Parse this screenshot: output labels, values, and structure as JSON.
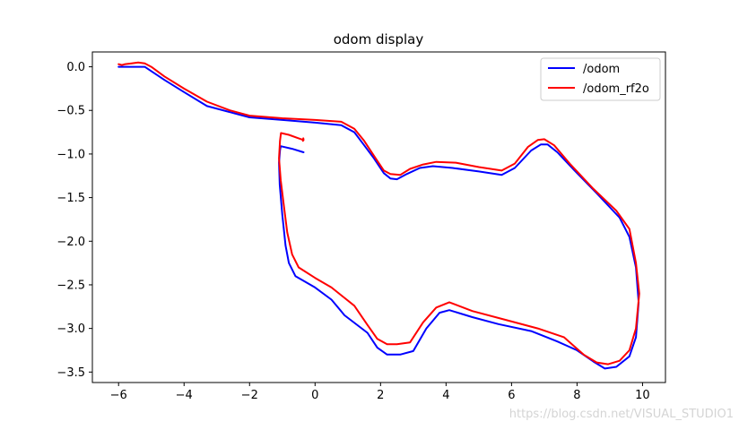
{
  "chart_data": {
    "type": "line",
    "title": "odom display",
    "xlabel": "",
    "ylabel": "",
    "xlim": [
      -6.8,
      10.7
    ],
    "ylim": [
      -3.62,
      0.17
    ],
    "xticks": [
      -6,
      -4,
      -2,
      0,
      2,
      4,
      6,
      8,
      10
    ],
    "yticks": [
      0.0,
      -0.5,
      -1.0,
      -1.5,
      -2.0,
      -2.5,
      -3.0,
      -3.5
    ],
    "ytick_labels": [
      "0.0",
      "−0.5",
      "−1.0",
      "−1.5",
      "−2.0",
      "−2.5",
      "−3.0",
      "−3.5"
    ],
    "xtick_labels": [
      "−6",
      "−4",
      "−2",
      "0",
      "2",
      "4",
      "6",
      "8",
      "10"
    ],
    "grid": false,
    "legend_position": "top-right",
    "series": [
      {
        "name": "/odom",
        "color": "#0000ff",
        "points": [
          [
            -6.0,
            0.0
          ],
          [
            -5.6,
            0.0
          ],
          [
            -5.2,
            0.0
          ],
          [
            -4.6,
            -0.15
          ],
          [
            -4.0,
            -0.29
          ],
          [
            -3.3,
            -0.45
          ],
          [
            -2.6,
            -0.52
          ],
          [
            -2.0,
            -0.58
          ],
          [
            -1.0,
            -0.61
          ],
          [
            0.0,
            -0.64
          ],
          [
            0.8,
            -0.67
          ],
          [
            1.2,
            -0.75
          ],
          [
            1.5,
            -0.9
          ],
          [
            1.8,
            -1.05
          ],
          [
            2.1,
            -1.22
          ],
          [
            2.3,
            -1.28
          ],
          [
            2.5,
            -1.29
          ],
          [
            2.8,
            -1.23
          ],
          [
            3.2,
            -1.16
          ],
          [
            3.6,
            -1.14
          ],
          [
            4.2,
            -1.16
          ],
          [
            5.0,
            -1.2
          ],
          [
            5.7,
            -1.24
          ],
          [
            6.1,
            -1.16
          ],
          [
            6.6,
            -0.96
          ],
          [
            6.9,
            -0.89
          ],
          [
            7.1,
            -0.89
          ],
          [
            7.4,
            -0.98
          ],
          [
            7.9,
            -1.18
          ],
          [
            8.6,
            -1.45
          ],
          [
            9.3,
            -1.73
          ],
          [
            9.6,
            -1.95
          ],
          [
            9.8,
            -2.3
          ],
          [
            9.88,
            -2.7
          ],
          [
            9.8,
            -3.1
          ],
          [
            9.6,
            -3.32
          ],
          [
            9.2,
            -3.44
          ],
          [
            8.85,
            -3.46
          ],
          [
            8.5,
            -3.38
          ],
          [
            8.0,
            -3.25
          ],
          [
            7.4,
            -3.15
          ],
          [
            6.6,
            -3.03
          ],
          [
            5.6,
            -2.95
          ],
          [
            4.8,
            -2.87
          ],
          [
            4.1,
            -2.79
          ],
          [
            3.8,
            -2.82
          ],
          [
            3.4,
            -3.0
          ],
          [
            3.0,
            -3.26
          ],
          [
            2.6,
            -3.3
          ],
          [
            2.2,
            -3.3
          ],
          [
            1.9,
            -3.22
          ],
          [
            1.6,
            -3.05
          ],
          [
            0.9,
            -2.85
          ],
          [
            0.5,
            -2.67
          ],
          [
            0.0,
            -2.53
          ],
          [
            -0.6,
            -2.4
          ],
          [
            -0.8,
            -2.25
          ],
          [
            -0.9,
            -2.05
          ],
          [
            -1.0,
            -1.7
          ],
          [
            -1.08,
            -1.35
          ],
          [
            -1.1,
            -1.1
          ],
          [
            -1.07,
            -0.96
          ],
          [
            -1.05,
            -0.91
          ],
          [
            -0.7,
            -0.94
          ],
          [
            -0.35,
            -0.98
          ]
        ]
      },
      {
        "name": "/odom_rf2o",
        "color": "#ff0000",
        "points": [
          [
            -6.0,
            0.03
          ],
          [
            -5.9,
            0.02
          ],
          [
            -5.8,
            0.03
          ],
          [
            -5.6,
            0.04
          ],
          [
            -5.4,
            0.05
          ],
          [
            -5.2,
            0.04
          ],
          [
            -5.0,
            0.0
          ],
          [
            -4.6,
            -0.11
          ],
          [
            -4.0,
            -0.25
          ],
          [
            -3.3,
            -0.4
          ],
          [
            -2.6,
            -0.5
          ],
          [
            -2.0,
            -0.56
          ],
          [
            -1.0,
            -0.59
          ],
          [
            0.0,
            -0.61
          ],
          [
            0.8,
            -0.63
          ],
          [
            1.2,
            -0.71
          ],
          [
            1.5,
            -0.85
          ],
          [
            1.8,
            -1.02
          ],
          [
            2.1,
            -1.19
          ],
          [
            2.3,
            -1.23
          ],
          [
            2.6,
            -1.24
          ],
          [
            2.9,
            -1.17
          ],
          [
            3.3,
            -1.12
          ],
          [
            3.7,
            -1.09
          ],
          [
            4.3,
            -1.1
          ],
          [
            5.0,
            -1.15
          ],
          [
            5.7,
            -1.19
          ],
          [
            6.1,
            -1.11
          ],
          [
            6.5,
            -0.92
          ],
          [
            6.8,
            -0.84
          ],
          [
            7.0,
            -0.83
          ],
          [
            7.3,
            -0.9
          ],
          [
            7.8,
            -1.12
          ],
          [
            8.5,
            -1.4
          ],
          [
            9.2,
            -1.65
          ],
          [
            9.6,
            -1.86
          ],
          [
            9.8,
            -2.25
          ],
          [
            9.9,
            -2.6
          ],
          [
            9.8,
            -3.0
          ],
          [
            9.6,
            -3.25
          ],
          [
            9.3,
            -3.37
          ],
          [
            8.95,
            -3.41
          ],
          [
            8.6,
            -3.39
          ],
          [
            8.2,
            -3.3
          ],
          [
            7.6,
            -3.1
          ],
          [
            6.8,
            -3.0
          ],
          [
            5.8,
            -2.9
          ],
          [
            4.8,
            -2.8
          ],
          [
            4.1,
            -2.7
          ],
          [
            3.7,
            -2.76
          ],
          [
            3.3,
            -2.93
          ],
          [
            2.9,
            -3.16
          ],
          [
            2.5,
            -3.18
          ],
          [
            2.2,
            -3.18
          ],
          [
            1.9,
            -3.12
          ],
          [
            1.6,
            -2.96
          ],
          [
            1.2,
            -2.74
          ],
          [
            0.8,
            -2.62
          ],
          [
            0.5,
            -2.53
          ],
          [
            0.0,
            -2.42
          ],
          [
            -0.5,
            -2.3
          ],
          [
            -0.7,
            -2.15
          ],
          [
            -0.85,
            -1.9
          ],
          [
            -0.95,
            -1.6
          ],
          [
            -1.05,
            -1.3
          ],
          [
            -1.1,
            -1.05
          ],
          [
            -1.07,
            -0.85
          ],
          [
            -1.04,
            -0.76
          ],
          [
            -0.8,
            -0.78
          ],
          [
            -0.5,
            -0.82
          ],
          [
            -0.35,
            -0.84
          ],
          [
            -0.36,
            -0.82
          ],
          [
            -0.37,
            -0.85
          ]
        ]
      }
    ]
  },
  "watermark": "https://blog.csdn.net/VISUAL_STUDIO1"
}
